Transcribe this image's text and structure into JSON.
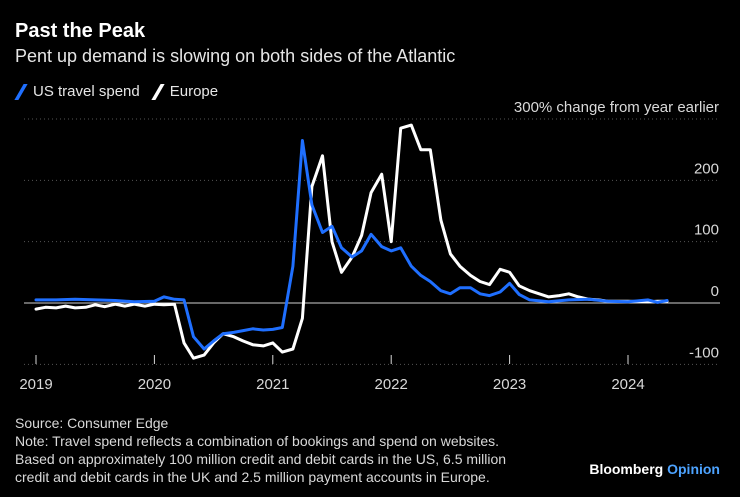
{
  "header": {
    "title": "Past the Peak",
    "subtitle": "Pent up demand is slowing on both sides of the Atlantic"
  },
  "legend": [
    {
      "label": "US travel spend",
      "color": "#1f6fff"
    },
    {
      "label": "Europe",
      "color": "#ffffff"
    }
  ],
  "footer": {
    "source": "Source: Consumer Edge",
    "note_lines": [
      "Note: Travel spend reflects a combination of bookings and spend on websites.",
      "Based on approximately 100 million credit and debit cards in the US, 6.5 million",
      "credit and debit cards in the UK and 2.5 million payment accounts in Europe."
    ]
  },
  "brand": {
    "name": "Bloomberg",
    "accent": "Opinion"
  },
  "chart_data": {
    "type": "line",
    "title": "Past the Peak",
    "ylabel": "% change from year earlier",
    "ylim": [
      -100,
      300
    ],
    "yticks": [
      300,
      200,
      100,
      0,
      -100
    ],
    "ytick_labels": [
      "300",
      "200",
      "100",
      "0",
      "-100"
    ],
    "y_unit_label": "% change from year earlier",
    "xlim": [
      2019,
      2024.5
    ],
    "xticks": [
      2019,
      2020,
      2021,
      2022,
      2023,
      2024
    ],
    "xtick_labels": [
      "2019",
      "2020",
      "2021",
      "2022",
      "2023",
      "2024"
    ],
    "series": [
      {
        "name": "US travel spend",
        "color": "#1f6fff",
        "points": [
          [
            2019.0,
            5
          ],
          [
            2019.17,
            5
          ],
          [
            2019.33,
            6
          ],
          [
            2019.5,
            5
          ],
          [
            2019.67,
            4
          ],
          [
            2019.83,
            2
          ],
          [
            2020.0,
            3
          ],
          [
            2020.08,
            10
          ],
          [
            2020.17,
            6
          ],
          [
            2020.25,
            5
          ],
          [
            2020.33,
            -55
          ],
          [
            2020.42,
            -75
          ],
          [
            2020.5,
            -62
          ],
          [
            2020.58,
            -50
          ],
          [
            2020.67,
            -48
          ],
          [
            2020.75,
            -45
          ],
          [
            2020.83,
            -42
          ],
          [
            2020.92,
            -44
          ],
          [
            2021.0,
            -43
          ],
          [
            2021.08,
            -40
          ],
          [
            2021.17,
            60
          ],
          [
            2021.25,
            265
          ],
          [
            2021.33,
            160
          ],
          [
            2021.42,
            115
          ],
          [
            2021.5,
            125
          ],
          [
            2021.58,
            90
          ],
          [
            2021.67,
            75
          ],
          [
            2021.75,
            85
          ],
          [
            2021.83,
            112
          ],
          [
            2021.92,
            92
          ],
          [
            2022.0,
            85
          ],
          [
            2022.08,
            90
          ],
          [
            2022.17,
            60
          ],
          [
            2022.25,
            45
          ],
          [
            2022.33,
            35
          ],
          [
            2022.42,
            20
          ],
          [
            2022.5,
            15
          ],
          [
            2022.58,
            25
          ],
          [
            2022.67,
            25
          ],
          [
            2022.75,
            15
          ],
          [
            2022.83,
            12
          ],
          [
            2022.92,
            18
          ],
          [
            2023.0,
            32
          ],
          [
            2023.08,
            14
          ],
          [
            2023.17,
            5
          ],
          [
            2023.33,
            2
          ],
          [
            2023.5,
            5
          ],
          [
            2023.67,
            6
          ],
          [
            2023.83,
            3
          ],
          [
            2024.0,
            2
          ],
          [
            2024.17,
            5
          ],
          [
            2024.25,
            1
          ],
          [
            2024.33,
            4
          ]
        ]
      },
      {
        "name": "Europe",
        "color": "#ffffff",
        "points": [
          [
            2019.0,
            -10
          ],
          [
            2019.08,
            -7
          ],
          [
            2019.17,
            -8
          ],
          [
            2019.25,
            -5
          ],
          [
            2019.33,
            -8
          ],
          [
            2019.42,
            -7
          ],
          [
            2019.5,
            -3
          ],
          [
            2019.58,
            -6
          ],
          [
            2019.67,
            -2
          ],
          [
            2019.75,
            -5
          ],
          [
            2019.83,
            -2
          ],
          [
            2019.92,
            -5
          ],
          [
            2020.0,
            -2
          ],
          [
            2020.08,
            -3
          ],
          [
            2020.17,
            -2
          ],
          [
            2020.25,
            -65
          ],
          [
            2020.33,
            -90
          ],
          [
            2020.42,
            -85
          ],
          [
            2020.5,
            -65
          ],
          [
            2020.58,
            -50
          ],
          [
            2020.67,
            -55
          ],
          [
            2020.75,
            -62
          ],
          [
            2020.83,
            -68
          ],
          [
            2020.92,
            -70
          ],
          [
            2021.0,
            -65
          ],
          [
            2021.08,
            -80
          ],
          [
            2021.17,
            -75
          ],
          [
            2021.25,
            -25
          ],
          [
            2021.33,
            190
          ],
          [
            2021.42,
            240
          ],
          [
            2021.5,
            100
          ],
          [
            2021.58,
            50
          ],
          [
            2021.67,
            75
          ],
          [
            2021.75,
            110
          ],
          [
            2021.83,
            180
          ],
          [
            2021.92,
            210
          ],
          [
            2022.0,
            100
          ],
          [
            2022.08,
            285
          ],
          [
            2022.17,
            290
          ],
          [
            2022.25,
            250
          ],
          [
            2022.33,
            250
          ],
          [
            2022.42,
            135
          ],
          [
            2022.5,
            80
          ],
          [
            2022.58,
            60
          ],
          [
            2022.67,
            45
          ],
          [
            2022.75,
            35
          ],
          [
            2022.83,
            30
          ],
          [
            2022.92,
            55
          ],
          [
            2023.0,
            50
          ],
          [
            2023.08,
            28
          ],
          [
            2023.17,
            20
          ],
          [
            2023.25,
            15
          ],
          [
            2023.33,
            10
          ],
          [
            2023.42,
            12
          ],
          [
            2023.5,
            15
          ],
          [
            2023.58,
            10
          ],
          [
            2023.67,
            6
          ],
          [
            2023.75,
            5
          ],
          [
            2023.83,
            3
          ],
          [
            2024.0,
            3
          ],
          [
            2024.17,
            2
          ],
          [
            2024.25,
            3
          ],
          [
            2024.33,
            3
          ]
        ]
      }
    ]
  }
}
